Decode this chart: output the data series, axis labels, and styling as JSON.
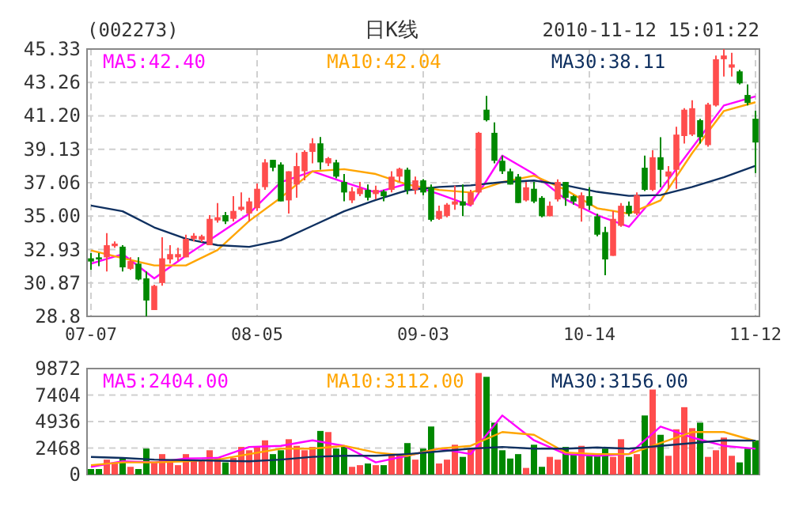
{
  "chart_data": [
    {
      "type": "candlestick",
      "title": "(002273)",
      "subtitle": "日K线",
      "annotations": [
        "2010-11-12 15:01:22"
      ],
      "categories": [
        "07-07",
        null,
        null,
        null,
        null,
        null,
        null,
        null,
        null,
        null,
        null,
        null,
        null,
        null,
        null,
        null,
        null,
        null,
        null,
        null,
        null,
        "08-05",
        null,
        null,
        null,
        null,
        null,
        null,
        null,
        null,
        null,
        null,
        null,
        null,
        null,
        null,
        null,
        null,
        null,
        null,
        null,
        null,
        "09-03",
        null,
        null,
        null,
        null,
        null,
        null,
        null,
        null,
        null,
        null,
        null,
        null,
        null,
        null,
        null,
        null,
        null,
        null,
        null,
        null,
        "10-14",
        null,
        null,
        null,
        null,
        null,
        null,
        null,
        null,
        null,
        null,
        null,
        null,
        null,
        null,
        null,
        null,
        null,
        null,
        null,
        null,
        "11-12"
      ],
      "ohlc": [
        [
          32.39,
          32.71,
          31.67,
          32.19
        ],
        [
          32.45,
          32.71,
          31.9,
          32.32
        ],
        [
          32.45,
          33.95,
          31.57,
          33.2
        ],
        [
          33.14,
          33.43,
          33.04,
          33.3
        ],
        [
          33.11,
          33.2,
          31.57,
          31.83
        ],
        [
          31.74,
          32.45,
          31.67,
          32.22
        ],
        [
          32.06,
          32.45,
          31.02,
          31.08
        ],
        [
          31.15,
          31.57,
          28.8,
          29.78
        ],
        [
          29.19,
          30.76,
          29.19,
          30.69
        ],
        [
          30.86,
          33.69,
          30.69,
          32.39
        ],
        [
          32.32,
          33.2,
          32.06,
          32.65
        ],
        [
          32.45,
          33.04,
          32.22,
          32.65
        ],
        [
          32.45,
          33.85,
          32.45,
          33.59
        ],
        [
          33.59,
          33.95,
          33.43,
          33.79
        ],
        [
          33.53,
          33.85,
          33.4,
          33.76
        ],
        [
          33.2,
          35.06,
          33.2,
          34.83
        ],
        [
          34.73,
          35.81,
          34.6,
          34.93
        ],
        [
          35.06,
          35.26,
          34.51,
          34.67
        ],
        [
          34.83,
          36.23,
          34.67,
          35.32
        ],
        [
          35.39,
          36.46,
          35.32,
          35.58
        ],
        [
          35.16,
          36.14,
          34.67,
          35.91
        ],
        [
          35.49,
          37.02,
          35.32,
          36.69
        ],
        [
          36.79,
          38.52,
          36.62,
          38.32
        ],
        [
          38.48,
          38.48,
          37.77,
          37.99
        ],
        [
          38.19,
          38.32,
          35.91,
          35.91
        ],
        [
          35.97,
          37.77,
          35.16,
          37.77
        ],
        [
          36.95,
          38.91,
          36.14,
          38.09
        ],
        [
          37.77,
          39.07,
          37.21,
          38.97
        ],
        [
          38.97,
          39.82,
          38.26,
          39.5
        ],
        [
          39.5,
          39.89,
          37.87,
          38.32
        ],
        [
          38.26,
          38.65,
          38.09,
          38.58
        ],
        [
          38.32,
          38.48,
          37.34,
          37.44
        ],
        [
          37.11,
          37.6,
          35.91,
          36.46
        ],
        [
          35.97,
          36.79,
          35.81,
          36.53
        ],
        [
          36.36,
          37.11,
          36.23,
          36.72
        ],
        [
          36.62,
          36.95,
          35.97,
          36.14
        ],
        [
          36.36,
          36.88,
          36.04,
          36.62
        ],
        [
          36.53,
          36.62,
          35.91,
          36.23
        ],
        [
          36.62,
          37.77,
          36.46,
          37.44
        ],
        [
          37.44,
          37.99,
          37.11,
          37.93
        ],
        [
          37.87,
          37.99,
          36.36,
          36.62
        ],
        [
          36.62,
          37.44,
          36.36,
          37.21
        ],
        [
          37.21,
          37.28,
          36.3,
          36.46
        ],
        [
          36.79,
          36.95,
          34.67,
          34.77
        ],
        [
          34.83,
          35.65,
          34.77,
          35.32
        ],
        [
          35.0,
          35.81,
          34.93,
          35.71
        ],
        [
          35.71,
          36.88,
          35.39,
          35.91
        ],
        [
          35.91,
          36.95,
          35.0,
          35.65
        ],
        [
          35.71,
          36.62,
          35.65,
          36.46
        ],
        [
          36.46,
          40.21,
          36.36,
          40.15
        ],
        [
          41.58,
          42.43,
          40.86,
          40.93
        ],
        [
          40.15,
          40.8,
          38.26,
          38.42
        ],
        [
          38.42,
          38.74,
          37.6,
          37.77
        ],
        [
          37.77,
          37.93,
          36.95,
          36.95
        ],
        [
          37.44,
          37.6,
          35.81,
          35.81
        ],
        [
          35.97,
          37.11,
          35.9,
          36.78
        ],
        [
          36.69,
          37.11,
          35.8,
          35.9
        ],
        [
          36.13,
          36.23,
          34.92,
          34.99
        ],
        [
          34.99,
          35.9,
          34.99,
          35.64
        ],
        [
          36.03,
          37.27,
          35.9,
          37.11
        ],
        [
          37.11,
          37.11,
          35.64,
          36.13
        ],
        [
          36.23,
          36.29,
          35.71,
          35.9
        ],
        [
          35.48,
          36.46,
          34.66,
          36.29
        ],
        [
          36.23,
          36.78,
          35.38,
          35.64
        ],
        [
          34.99,
          35.15,
          33.75,
          33.85
        ],
        [
          34.01,
          34.34,
          31.34,
          32.32
        ],
        [
          32.54,
          35.32,
          32.54,
          34.83
        ],
        [
          34.4,
          35.8,
          34.34,
          35.64
        ],
        [
          35.64,
          35.9,
          34.99,
          35.15
        ],
        [
          35.15,
          36.46,
          35.05,
          36.29
        ],
        [
          37.99,
          38.74,
          36.55,
          36.62
        ],
        [
          36.62,
          39.07,
          36.55,
          38.64
        ],
        [
          38.64,
          39.88,
          36.78,
          37.86
        ],
        [
          37.44,
          38.09,
          36.69,
          37.76
        ],
        [
          37.86,
          40.53,
          36.69,
          40.04
        ],
        [
          39.95,
          41.67,
          39.49,
          41.58
        ],
        [
          40.04,
          42.16,
          39.95,
          41.67
        ],
        [
          40.93,
          41.02,
          39.49,
          39.88
        ],
        [
          39.39,
          42.0,
          39.29,
          41.9
        ],
        [
          41.84,
          44.93,
          41.77,
          44.7
        ],
        [
          44.7,
          45.33,
          43.63,
          44.93
        ],
        [
          44.18,
          45.1,
          43.63,
          44.38
        ],
        [
          43.95,
          44.05,
          43.14,
          43.21
        ],
        [
          42.49,
          43.14,
          41.84,
          42.0
        ],
        [
          41.02,
          41.51,
          37.66,
          39.55
        ]
      ],
      "colors": [
        "#008800",
        "#008800",
        "#ff4d4d",
        "#ff4d4d",
        "#008800",
        "#ff4d4d",
        "#008800",
        "#008800",
        "#ff4d4d",
        "#ff4d4d",
        "#ff4d4d",
        "#ff4d4d",
        "#ff4d4d",
        "#ff4d4d",
        "#ff4d4d",
        "#ff4d4d",
        "#ff4d4d",
        "#008800",
        "#ff4d4d",
        "#ff4d4d",
        "#ff4d4d",
        "#ff4d4d",
        "#ff4d4d",
        "#008800",
        "#008800",
        "#ff4d4d",
        "#ff4d4d",
        "#ff4d4d",
        "#ff4d4d",
        "#008800",
        "#ff4d4d",
        "#008800",
        "#008800",
        "#ff4d4d",
        "#ff4d4d",
        "#008800",
        "#ff4d4d",
        "#008800",
        "#ff4d4d",
        "#ff4d4d",
        "#008800",
        "#ff4d4d",
        "#008800",
        "#008800",
        "#ff4d4d",
        "#ff4d4d",
        "#ff4d4d",
        "#008800",
        "#ff4d4d",
        "#ff4d4d",
        "#008800",
        "#008800",
        "#008800",
        "#008800",
        "#008800",
        "#ff4d4d",
        "#008800",
        "#008800",
        "#ff4d4d",
        "#ff4d4d",
        "#008800",
        "#008800",
        "#ff4d4d",
        "#008800",
        "#008800",
        "#008800",
        "#ff4d4d",
        "#ff4d4d",
        "#008800",
        "#ff4d4d",
        "#008800",
        "#ff4d4d",
        "#008800",
        "#ff4d4d",
        "#ff4d4d",
        "#ff4d4d",
        "#ff4d4d",
        "#008800",
        "#ff4d4d",
        "#ff4d4d",
        "#ff4d4d",
        "#ff4d4d",
        "#008800",
        "#008800",
        "#008800"
      ],
      "series": [
        {
          "type": "line",
          "name": "MA5:42.40",
          "color": "#ff00ff",
          "values": [
            32.06,
            null,
            null,
            null,
            32.65,
            null,
            null,
            null,
            31.15,
            null,
            null,
            null,
            32.55,
            null,
            null,
            null,
            33.85,
            null,
            null,
            null,
            35.16,
            null,
            null,
            null,
            37.1,
            null,
            null,
            null,
            37.77,
            null,
            null,
            null,
            37.1,
            null,
            null,
            null,
            36.46,
            null,
            null,
            null,
            37.0,
            null,
            null,
            null,
            36.36,
            null,
            null,
            null,
            35.65,
            null,
            null,
            null,
            38.74,
            null,
            null,
            null,
            37.6,
            null,
            null,
            null,
            36.03,
            null,
            null,
            null,
            35.05,
            null,
            null,
            null,
            34.34,
            null,
            null,
            null,
            36.62,
            null,
            null,
            null,
            39.23,
            null,
            null,
            null,
            41.84,
            null,
            null,
            null,
            42.4
          ]
        },
        {
          "type": "line",
          "name": "MA10:42.04",
          "color": "#ffa500",
          "values": [
            32.88,
            null,
            null,
            null,
            32.4,
            null,
            null,
            null,
            31.95,
            null,
            null,
            null,
            31.95,
            null,
            null,
            null,
            32.9,
            null,
            null,
            null,
            34.7,
            null,
            null,
            null,
            36.14,
            null,
            null,
            null,
            37.77,
            null,
            null,
            null,
            37.9,
            null,
            null,
            null,
            37.6,
            null,
            null,
            null,
            36.95,
            null,
            null,
            null,
            36.62,
            null,
            null,
            null,
            36.46,
            null,
            null,
            null,
            37.1,
            null,
            null,
            null,
            37.5,
            null,
            null,
            null,
            36.62,
            null,
            null,
            null,
            35.48,
            null,
            null,
            null,
            35.15,
            null,
            null,
            null,
            35.97,
            null,
            null,
            null,
            38.9,
            null,
            null,
            null,
            41.5,
            null,
            null,
            null,
            42.04
          ]
        },
        {
          "type": "line",
          "name": "MA30:38.11",
          "color": "#0f3060",
          "values": [
            35.65,
            null,
            null,
            null,
            35.3,
            null,
            null,
            null,
            34.3,
            null,
            null,
            null,
            33.6,
            null,
            null,
            null,
            33.2,
            null,
            null,
            null,
            33.1,
            null,
            null,
            null,
            33.5,
            null,
            null,
            null,
            34.4,
            null,
            null,
            null,
            35.3,
            null,
            null,
            null,
            36.0,
            null,
            null,
            null,
            36.6,
            null,
            null,
            null,
            36.8,
            null,
            null,
            null,
            36.9,
            null,
            null,
            null,
            37.1,
            null,
            null,
            null,
            37.2,
            null,
            null,
            null,
            36.9,
            null,
            null,
            null,
            36.5,
            null,
            null,
            null,
            36.25,
            null,
            null,
            null,
            36.3,
            null,
            null,
            null,
            36.8,
            null,
            null,
            null,
            37.4,
            null,
            null,
            null,
            38.11
          ]
        }
      ],
      "ylim": [
        28.8,
        45.33
      ],
      "yticks": [
        28.8,
        {
          "value": 30.87,
          "label": "30.87"
        },
        {
          "value": 32.93,
          "label": "32.93"
        },
        {
          "value": 35,
          "label": "35.00"
        },
        {
          "value": 37.06,
          "label": "37.06"
        },
        {
          "value": 39.13,
          "label": "39.13"
        },
        {
          "value": 41.2,
          "label": "41.20"
        },
        {
          "value": 43.26,
          "label": "43.26"
        },
        {
          "value": 45.33,
          "label": "45.33"
        }
      ],
      "grid": true
    },
    {
      "type": "bar",
      "tick_labels": "y",
      "categories": [
        null,
        null,
        null,
        null,
        null,
        null,
        null,
        null,
        null,
        null,
        null,
        null,
        null,
        null,
        null,
        null,
        null,
        null,
        null,
        null,
        null,
        null,
        null,
        null,
        null,
        null,
        null,
        null,
        null,
        null,
        null,
        null,
        null,
        null,
        null,
        null,
        null,
        null,
        null,
        null,
        null,
        null,
        null,
        null,
        null,
        null,
        null,
        null,
        null,
        null,
        null,
        null,
        null,
        null,
        null,
        null,
        null,
        null,
        null,
        null,
        null,
        null,
        null,
        null,
        null,
        null,
        null,
        null,
        null,
        null,
        null,
        null,
        null,
        null,
        null,
        null,
        null,
        null,
        null,
        null,
        null,
        null,
        null,
        null,
        null
      ],
      "values": [
        514,
        514,
        1388,
        1028,
        1543,
        720,
        514,
        2417,
        1131,
        1903,
        1131,
        874,
        1903,
        1388,
        1388,
        2262,
        1543,
        1131,
        1543,
        2571,
        2262,
        2571,
        3188,
        1903,
        2262,
        3291,
        2674,
        2262,
        2571,
        4062,
        3959,
        2417,
        2674,
        720,
        874,
        1028,
        874,
        874,
        1903,
        1903,
        2931,
        1388,
        2417,
        4474,
        1028,
        1388,
        2777,
        1645,
        2417,
        9461,
        9101,
        4833,
        2262,
        1491,
        1903,
        617,
        2777,
        720,
        1645,
        1388,
        2571,
        1903,
        2674,
        1748,
        1748,
        2417,
        1645,
        3291,
        1645,
        1903,
        5502,
        7919,
        3702,
        1748,
        4216,
        6273,
        4319,
        4833,
        1645,
        2262,
        3445,
        1748,
        1131,
        2417,
        3188
      ],
      "colors": [
        "#008800",
        "#008800",
        "#ff4d4d",
        "#ff4d4d",
        "#008800",
        "#ff4d4d",
        "#008800",
        "#008800",
        "#ff4d4d",
        "#ff4d4d",
        "#ff4d4d",
        "#ff4d4d",
        "#ff4d4d",
        "#ff4d4d",
        "#ff4d4d",
        "#ff4d4d",
        "#ff4d4d",
        "#008800",
        "#ff4d4d",
        "#ff4d4d",
        "#ff4d4d",
        "#ff4d4d",
        "#ff4d4d",
        "#008800",
        "#008800",
        "#ff4d4d",
        "#ff4d4d",
        "#ff4d4d",
        "#ff4d4d",
        "#008800",
        "#ff4d4d",
        "#008800",
        "#008800",
        "#ff4d4d",
        "#ff4d4d",
        "#008800",
        "#ff4d4d",
        "#008800",
        "#ff4d4d",
        "#ff4d4d",
        "#008800",
        "#ff4d4d",
        "#008800",
        "#008800",
        "#ff4d4d",
        "#ff4d4d",
        "#ff4d4d",
        "#008800",
        "#ff4d4d",
        "#ff4d4d",
        "#008800",
        "#008800",
        "#008800",
        "#008800",
        "#008800",
        "#ff4d4d",
        "#008800",
        "#008800",
        "#ff4d4d",
        "#ff4d4d",
        "#008800",
        "#008800",
        "#ff4d4d",
        "#008800",
        "#008800",
        "#008800",
        "#ff4d4d",
        "#ff4d4d",
        "#008800",
        "#ff4d4d",
        "#008800",
        "#ff4d4d",
        "#008800",
        "#ff4d4d",
        "#ff4d4d",
        "#ff4d4d",
        "#ff4d4d",
        "#008800",
        "#ff4d4d",
        "#ff4d4d",
        "#ff4d4d",
        "#ff4d4d",
        "#008800",
        "#008800",
        "#008800"
      ],
      "series": [
        {
          "type": "line",
          "name": "MA5:2404.00",
          "color": "#ff00ff",
          "values": [
            720,
            null,
            null,
            null,
            1234,
            null,
            null,
            null,
            1131,
            null,
            null,
            null,
            1491,
            null,
            null,
            null,
            1543,
            null,
            null,
            null,
            2571,
            null,
            null,
            null,
            2674,
            null,
            null,
            null,
            3188,
            null,
            null,
            null,
            2674,
            null,
            null,
            null,
            1131,
            null,
            null,
            null,
            1748,
            null,
            null,
            null,
            2417,
            null,
            null,
            null,
            1903,
            null,
            null,
            null,
            5502,
            null,
            null,
            null,
            3188,
            null,
            null,
            null,
            1903,
            null,
            null,
            null,
            1748,
            null,
            null,
            null,
            1903,
            null,
            null,
            null,
            4474,
            null,
            null,
            null,
            3445,
            null,
            null,
            null,
            2674,
            null,
            null,
            null,
            2404
          ]
        },
        {
          "type": "line",
          "name": "MA10:3112.00",
          "color": "#ffa500",
          "values": [
            874,
            null,
            null,
            null,
            1131,
            null,
            null,
            null,
            1131,
            null,
            null,
            null,
            1234,
            null,
            null,
            null,
            1388,
            null,
            null,
            null,
            1903,
            null,
            null,
            null,
            2417,
            null,
            null,
            null,
            2417,
            null,
            null,
            null,
            2674,
            null,
            null,
            null,
            2057,
            null,
            null,
            null,
            1748,
            null,
            null,
            null,
            2417,
            null,
            null,
            null,
            2674,
            null,
            null,
            null,
            3959,
            null,
            null,
            null,
            3702,
            null,
            null,
            null,
            2057,
            null,
            null,
            null,
            1903,
            null,
            null,
            null,
            1903,
            null,
            null,
            null,
            2931,
            null,
            null,
            null,
            3959,
            null,
            null,
            null,
            3959,
            null,
            null,
            null,
            3112
          ]
        },
        {
          "type": "line",
          "name": "MA30:3156.00",
          "color": "#0f3060",
          "values": [
            1645,
            null,
            null,
            null,
            1550,
            null,
            null,
            null,
            1388,
            null,
            null,
            null,
            1337,
            null,
            null,
            null,
            1290,
            null,
            null,
            null,
            1234,
            null,
            null,
            null,
            1388,
            null,
            null,
            null,
            1650,
            null,
            null,
            null,
            1748,
            null,
            null,
            null,
            1748,
            null,
            null,
            null,
            1903,
            null,
            null,
            null,
            2160,
            null,
            null,
            null,
            2417,
            null,
            null,
            null,
            2571,
            null,
            null,
            null,
            2417,
            null,
            null,
            null,
            2417,
            null,
            null,
            null,
            2520,
            null,
            null,
            null,
            2417,
            null,
            null,
            null,
            2674,
            null,
            null,
            null,
            2931,
            null,
            null,
            null,
            3188,
            null,
            null,
            null,
            3156
          ]
        }
      ],
      "ylim": [
        0,
        9872
      ],
      "yticks": [
        0,
        2468,
        4936,
        7404,
        9872
      ],
      "grid": true
    }
  ]
}
